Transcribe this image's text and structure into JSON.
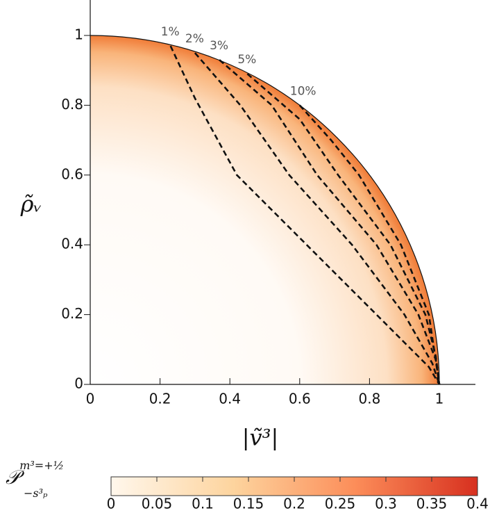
{
  "chart_data": {
    "type": "line",
    "xlabel": "|ṽ³|",
    "ylabel": "ρ̃ᵥ",
    "xlim": [
      0,
      1.1
    ],
    "ylim": [
      0,
      1.1
    ],
    "xticks": [
      0,
      0.2,
      0.4,
      0.6,
      0.8,
      1
    ],
    "yticks": [
      0,
      0.2,
      0.4,
      0.6,
      0.8,
      1
    ],
    "series": [
      {
        "name": "1%",
        "color": "#111111",
        "x": [
          0.23,
          0.3,
          0.42,
          0.62,
          0.82,
          0.97,
          1.0
        ],
        "values": [
          0.97,
          0.82,
          0.6,
          0.4,
          0.2,
          0.05,
          0.0
        ]
      },
      {
        "name": "2%",
        "color": "#111111",
        "x": [
          0.3,
          0.43,
          0.57,
          0.75,
          0.9,
          0.98,
          1.0
        ],
        "values": [
          0.95,
          0.8,
          0.6,
          0.4,
          0.2,
          0.06,
          0.0
        ]
      },
      {
        "name": "3%",
        "color": "#111111",
        "x": [
          0.37,
          0.52,
          0.65,
          0.82,
          0.94,
          0.99,
          1.0
        ],
        "values": [
          0.93,
          0.8,
          0.6,
          0.4,
          0.2,
          0.07,
          0.0
        ]
      },
      {
        "name": "5%",
        "color": "#111111",
        "x": [
          0.45,
          0.6,
          0.71,
          0.86,
          0.96,
          0.99,
          1.0
        ],
        "values": [
          0.89,
          0.76,
          0.6,
          0.4,
          0.2,
          0.08,
          0.0
        ]
      },
      {
        "name": "10%",
        "color": "#111111",
        "x": [
          0.6,
          0.69,
          0.77,
          0.89,
          0.97,
          1.0
        ],
        "values": [
          0.8,
          0.7,
          0.6,
          0.4,
          0.2,
          0.0
        ]
      }
    ],
    "colorbar": {
      "label_base": "𝒫",
      "label_sup": "m³=+½",
      "label_sub": "−s³ₚ",
      "clim": [
        0,
        0.4
      ],
      "cticks": [
        0,
        0.05,
        0.1,
        0.15,
        0.2,
        0.25,
        0.3,
        0.35,
        0.4
      ],
      "colormap": [
        "#fff7ec",
        "#fdd49e",
        "#fc8d59",
        "#d7301f"
      ]
    }
  }
}
